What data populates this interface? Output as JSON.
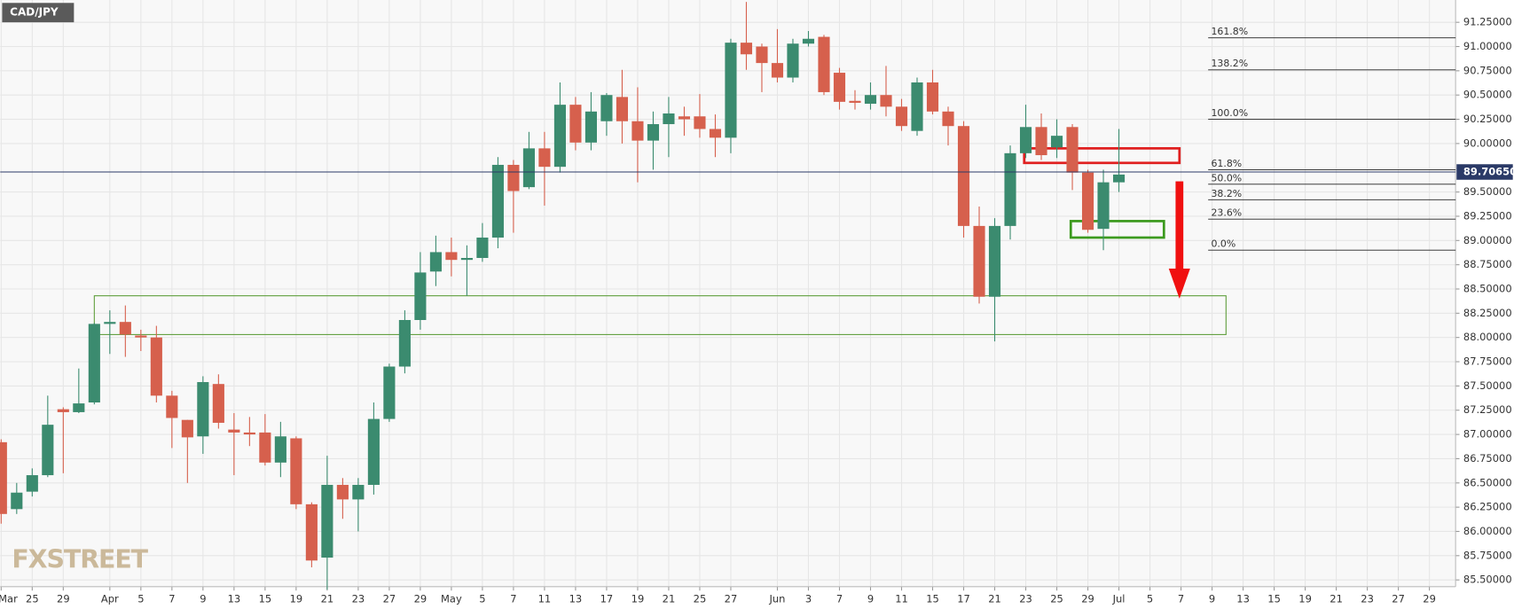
{
  "chart_data": {
    "type": "candlestick",
    "title": "CAD/JPY",
    "watermark": "FXSTREET",
    "up_color": "#3b8b6f",
    "down_color": "#d6604d",
    "grid": true,
    "xlim": [
      -0.0625,
      93.6875
    ],
    "ylim": [
      85.43,
      91.48
    ],
    "xticks": [
      {
        "value": 0,
        "label": "Mar"
      },
      {
        "value": 2,
        "label": "25"
      },
      {
        "value": 4,
        "label": "29"
      },
      {
        "value": 7,
        "label": "Apr"
      },
      {
        "value": 9,
        "label": "5"
      },
      {
        "value": 11,
        "label": "7"
      },
      {
        "value": 13,
        "label": "9"
      },
      {
        "value": 15,
        "label": "13"
      },
      {
        "value": 17,
        "label": "15"
      },
      {
        "value": 19,
        "label": "19"
      },
      {
        "value": 21,
        "label": "21"
      },
      {
        "value": 23,
        "label": "23"
      },
      {
        "value": 25,
        "label": "27"
      },
      {
        "value": 27,
        "label": "29"
      },
      {
        "value": 29,
        "label": "May"
      },
      {
        "value": 31,
        "label": "5"
      },
      {
        "value": 33,
        "label": "7"
      },
      {
        "value": 35,
        "label": "11"
      },
      {
        "value": 37,
        "label": "13"
      },
      {
        "value": 39,
        "label": "17"
      },
      {
        "value": 41,
        "label": "19"
      },
      {
        "value": 43,
        "label": "21"
      },
      {
        "value": 45,
        "label": "25"
      },
      {
        "value": 47,
        "label": "27"
      },
      {
        "value": 50,
        "label": "Jun"
      },
      {
        "value": 52,
        "label": "3"
      },
      {
        "value": 54,
        "label": "7"
      },
      {
        "value": 56,
        "label": "9"
      },
      {
        "value": 58,
        "label": "11"
      },
      {
        "value": 60,
        "label": "15"
      },
      {
        "value": 62,
        "label": "17"
      },
      {
        "value": 64,
        "label": "21"
      },
      {
        "value": 66,
        "label": "23"
      },
      {
        "value": 68,
        "label": "25"
      },
      {
        "value": 70,
        "label": "29"
      },
      {
        "value": 72,
        "label": "Jul"
      },
      {
        "value": 74,
        "label": "5"
      },
      {
        "value": 76,
        "label": "7"
      },
      {
        "value": 78,
        "label": "9"
      },
      {
        "value": 80,
        "label": "13"
      },
      {
        "value": 82,
        "label": "15"
      },
      {
        "value": 84,
        "label": "19"
      },
      {
        "value": 86,
        "label": "21"
      },
      {
        "value": 88,
        "label": "23"
      },
      {
        "value": 90,
        "label": "27"
      },
      {
        "value": 92,
        "label": "29"
      }
    ],
    "yticks": [
      {
        "value": 85.5,
        "label": "85.50000"
      },
      {
        "value": 85.75,
        "label": "85.75000"
      },
      {
        "value": 86,
        "label": "86.00000"
      },
      {
        "value": 86.25,
        "label": "86.25000"
      },
      {
        "value": 86.5,
        "label": "86.50000"
      },
      {
        "value": 86.75,
        "label": "86.75000"
      },
      {
        "value": 87,
        "label": "87.00000"
      },
      {
        "value": 87.25,
        "label": "87.25000"
      },
      {
        "value": 87.5,
        "label": "87.50000"
      },
      {
        "value": 87.75,
        "label": "87.75000"
      },
      {
        "value": 88,
        "label": "88.00000"
      },
      {
        "value": 88.25,
        "label": "88.25000"
      },
      {
        "value": 88.5,
        "label": "88.50000"
      },
      {
        "value": 88.75,
        "label": "88.75000"
      },
      {
        "value": 89,
        "label": "89.00000"
      },
      {
        "value": 89.25,
        "label": "89.25000"
      },
      {
        "value": 89.5,
        "label": "89.50000"
      },
      {
        "value": 90,
        "label": "90.00000"
      },
      {
        "value": 90.25,
        "label": "90.25000"
      },
      {
        "value": 90.5,
        "label": "90.50000"
      },
      {
        "value": 90.75,
        "label": "90.75000"
      },
      {
        "value": 91,
        "label": "91.00000"
      },
      {
        "value": 91.25,
        "label": "91.25000"
      }
    ],
    "last_price": {
      "value": 89.7065,
      "label": "89.70650"
    },
    "open": [
      86.92,
      86.23,
      86.41,
      86.58,
      87.26,
      87.23,
      87.33,
      88.14,
      88.16,
      88.02,
      88.0,
      87.4,
      87.15,
      86.98,
      87.52,
      87.05,
      87.02,
      87.02,
      86.71,
      86.96,
      86.28,
      85.73,
      86.48,
      86.33,
      86.48,
      87.16,
      87.7,
      88.18,
      88.68,
      88.88,
      88.8,
      88.82,
      89.03,
      89.78,
      89.55,
      89.95,
      89.76,
      90.4,
      90.01,
      90.23,
      90.48,
      90.23,
      90.03,
      90.2,
      90.28,
      90.28,
      90.15,
      90.06,
      91.04,
      91.0,
      90.83,
      90.68,
      91.03,
      91.1,
      90.73,
      90.44,
      90.41,
      90.5,
      90.38,
      90.13,
      90.63,
      90.33,
      90.18,
      89.15,
      88.42,
      89.15,
      89.9,
      90.17,
      89.96,
      90.17,
      89.7,
      89.12,
      89.6
    ],
    "high": [
      86.95,
      86.5,
      86.65,
      87.4,
      87.28,
      87.68,
      88.15,
      88.28,
      88.33,
      88.08,
      88.12,
      87.45,
      87.15,
      87.6,
      87.62,
      87.22,
      87.18,
      87.21,
      87.13,
      86.98,
      86.3,
      86.78,
      86.55,
      86.55,
      87.33,
      87.73,
      88.28,
      88.88,
      89.05,
      89.03,
      88.95,
      89.18,
      89.86,
      89.83,
      90.12,
      90.12,
      90.63,
      90.48,
      90.53,
      90.52,
      90.76,
      90.58,
      90.33,
      90.48,
      90.38,
      90.51,
      90.3,
      91.08,
      91.46,
      91.03,
      91.18,
      91.08,
      91.16,
      91.12,
      90.78,
      90.55,
      90.63,
      90.8,
      90.46,
      90.68,
      90.76,
      90.38,
      90.23,
      89.35,
      89.23,
      89.98,
      90.4,
      90.31,
      90.25,
      90.2,
      89.73,
      89.73,
      90.15
    ],
    "low": [
      86.08,
      86.18,
      86.36,
      86.56,
      86.6,
      87.22,
      87.31,
      87.83,
      87.8,
      87.86,
      87.33,
      86.86,
      86.5,
      86.8,
      87.06,
      86.58,
      86.88,
      86.68,
      86.56,
      86.23,
      85.63,
      85.4,
      86.13,
      86.0,
      86.38,
      87.13,
      87.63,
      88.08,
      88.53,
      88.63,
      88.43,
      88.78,
      88.92,
      89.08,
      89.53,
      89.36,
      89.7,
      89.93,
      89.93,
      90.08,
      90.0,
      89.6,
      89.73,
      89.86,
      90.08,
      90.06,
      89.86,
      89.9,
      90.76,
      90.53,
      90.63,
      90.63,
      91.0,
      90.5,
      90.35,
      90.35,
      90.35,
      90.28,
      90.13,
      90.08,
      90.3,
      89.98,
      89.03,
      88.35,
      87.96,
      89.01,
      89.85,
      89.83,
      89.85,
      89.52,
      89.08,
      88.9,
      89.5
    ],
    "close": [
      86.18,
      86.4,
      86.58,
      87.1,
      87.23,
      87.32,
      88.14,
      88.16,
      88.03,
      88.0,
      87.4,
      87.17,
      86.97,
      87.54,
      87.12,
      87.02,
      87.0,
      86.71,
      86.98,
      86.28,
      85.7,
      86.48,
      86.33,
      86.48,
      87.16,
      87.7,
      88.18,
      88.67,
      88.88,
      88.8,
      88.82,
      89.03,
      89.78,
      89.51,
      89.95,
      89.76,
      90.4,
      90.01,
      90.33,
      90.5,
      90.23,
      90.03,
      90.2,
      90.31,
      90.25,
      90.15,
      90.06,
      91.04,
      90.92,
      90.83,
      90.68,
      91.03,
      91.08,
      90.53,
      90.43,
      90.42,
      90.5,
      90.38,
      90.18,
      90.63,
      90.33,
      90.18,
      89.15,
      88.42,
      89.15,
      89.9,
      90.17,
      89.88,
      90.08,
      89.7,
      89.11,
      89.6,
      89.68
    ],
    "fibonacci": {
      "levels": [
        "161.8%",
        "138.2%",
        "100.0%",
        "61.8%",
        "50.0%",
        "38.2%",
        "23.6%",
        "0.0%"
      ],
      "prices": [
        91.09,
        90.76,
        90.25,
        89.73,
        89.58,
        89.42,
        89.22,
        88.9
      ]
    },
    "zones": [
      {
        "top": 88.43,
        "bottom": 88.03,
        "color": "#5f9e3c"
      },
      {
        "top": 89.95,
        "bottom": 89.8,
        "color": "#e02020"
      },
      {
        "top": 89.2,
        "bottom": 89.03,
        "color": "#3c9a1e"
      }
    ]
  }
}
